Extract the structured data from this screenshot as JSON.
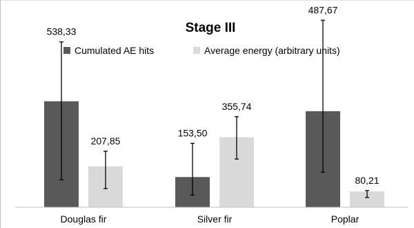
{
  "chart_data": {
    "type": "bar",
    "title": "Stage III",
    "xlabel": "",
    "ylabel": "",
    "categories": [
      "Douglas fir",
      "Silver fir",
      "Poplar"
    ],
    "ylim": [
      0,
      1000
    ],
    "grid": false,
    "legend_position": "top",
    "series": [
      {
        "name": "Cumulated AE hits",
        "color": "#595959",
        "values": [
          538.33,
          153.5,
          487.67
        ],
        "labels": [
          "538,33",
          "153,50",
          "487,67"
        ],
        "error_low": [
          140,
          62,
          178
        ],
        "error_high": [
          840,
          325,
          950
        ]
      },
      {
        "name": "Average energy (arbitrary units)",
        "color": "#d9d9d9",
        "values": [
          207.85,
          355.74,
          80.21
        ],
        "labels": [
          "207,85",
          "355,74",
          "80,21"
        ],
        "error_low": [
          95,
          245,
          50
        ],
        "error_high": [
          285,
          460,
          85
        ]
      }
    ]
  }
}
